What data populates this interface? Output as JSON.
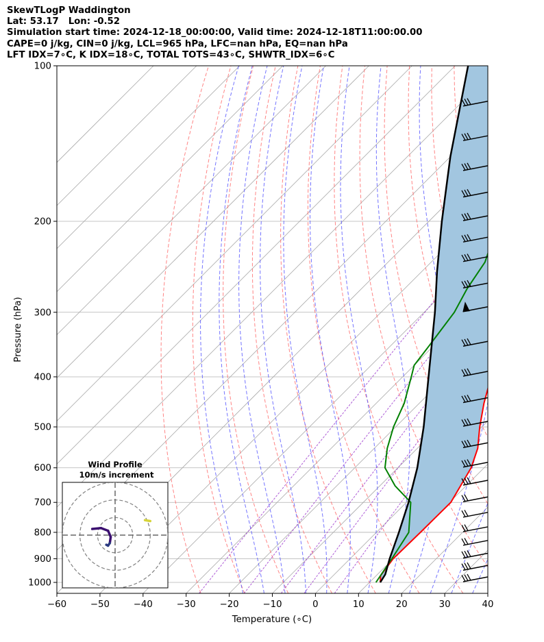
{
  "header": {
    "line1": "SkewTLogP Waddington",
    "line2": "Lat: 53.17   Lon: -0.52",
    "line3": "Simulation start time: 2024-12-18_00:00:00, Valid time: 2024-12-18T11:00:00.00",
    "line4": "CAPE=0 j/kg, CIN=0 j/kg, LCL=965 hPa, LFC=nan hPa, EQ=nan hPa",
    "line5": "LFT IDX=7∘C, K IDX=18∘C, TOTAL TOTS=43∘C, SHWTR_IDX=6∘C"
  },
  "chart_data": [
    {
      "type": "skew-t log-p",
      "xlabel": "Temperature (∘C)",
      "ylabel": "Pressure (hPa)",
      "xlim": [
        -60,
        40
      ],
      "ylim": [
        1050,
        100
      ],
      "x_ticks": [
        -60,
        -50,
        -40,
        -30,
        -20,
        -10,
        0,
        10,
        20,
        30,
        40
      ],
      "x_tick_labels": [
        "−60",
        "−50",
        "−40",
        "−30",
        "−20",
        "−10",
        "0",
        "10",
        "20",
        "30",
        "40"
      ],
      "y_ticks": [
        1000,
        900,
        800,
        700,
        600,
        500,
        400,
        300,
        200,
        100
      ],
      "y_tick_labels": [
        "1000",
        "900",
        "800",
        "700",
        "600",
        "500",
        "400",
        "300",
        "200",
        "100"
      ],
      "y_scale": "log",
      "grid": true,
      "colors": {
        "temperature": "#ff0000",
        "dewpoint": "#008000",
        "parcel": "#000000",
        "shading": "#a2c6e0",
        "dry_adiabat": "#ff6f6f",
        "moist_adiabat": "#5a5aff",
        "mixing_ratio": "#9932cc",
        "isotherm": "#a9a9a9"
      },
      "series": [
        {
          "role": "temperature",
          "points": [
            [
              1000,
              12.5
            ],
            [
              970,
              11.0
            ],
            [
              900,
              10.0
            ],
            [
              800,
              10.2
            ],
            [
              700,
              10.3
            ],
            [
              600,
              7.0
            ],
            [
              550,
              4.0
            ],
            [
              500,
              -0.5
            ],
            [
              450,
              -5.0
            ],
            [
              400,
              -9.5
            ],
            [
              350,
              -14.5
            ],
            [
              320,
              -17.5
            ],
            [
              300,
              -19.5
            ],
            [
              270,
              -22.5
            ],
            [
              250,
              -25.5
            ],
            [
              230,
              -28.0
            ],
            [
              210,
              -28.5
            ],
            [
              200,
              -28.5
            ],
            [
              180,
              -29.0
            ],
            [
              160,
              -31.0
            ],
            [
              140,
              -33.0
            ],
            [
              120,
              -35.0
            ],
            [
              100,
              -37.0
            ]
          ]
        },
        {
          "role": "dewpoint",
          "points": [
            [
              1000,
              11.5
            ],
            [
              900,
              9.7
            ],
            [
              800,
              7.5
            ],
            [
              700,
              1.0
            ],
            [
              650,
              -6.5
            ],
            [
              600,
              -13.0
            ],
            [
              550,
              -17.0
            ],
            [
              500,
              -20.5
            ],
            [
              450,
              -23.5
            ],
            [
              400,
              -28.0
            ],
            [
              380,
              -30.0
            ],
            [
              350,
              -31.0
            ],
            [
              300,
              -33.0
            ],
            [
              270,
              -35.5
            ],
            [
              240,
              -37.5
            ],
            [
              220,
              -40.5
            ],
            [
              200,
              -44.5
            ],
            [
              180,
              -49.0
            ],
            [
              160,
              -53.0
            ],
            [
              140,
              -58.0
            ],
            [
              120,
              -62.5
            ],
            [
              100,
              -65.0
            ]
          ]
        },
        {
          "role": "parcel",
          "points": [
            [
              1000,
              12.5
            ],
            [
              965,
              11.8
            ],
            [
              900,
              9.2
            ],
            [
              800,
              5.2
            ],
            [
              700,
              0.5
            ],
            [
              600,
              -5.5
            ],
            [
              500,
              -13.5
            ],
            [
              400,
              -24.0
            ],
            [
              300,
              -37.5
            ],
            [
              250,
              -46.5
            ],
            [
              200,
              -57.0
            ],
            [
              150,
              -70.0
            ],
            [
              100,
              -87.0
            ]
          ]
        }
      ],
      "wind_barbs": [
        {
          "p": 1000,
          "barbs": 3,
          "pennant": false
        },
        {
          "p": 950,
          "barbs": 3,
          "pennant": false
        },
        {
          "p": 900,
          "barbs": 3,
          "pennant": false
        },
        {
          "p": 850,
          "barbs": 2,
          "pennant": false
        },
        {
          "p": 800,
          "barbs": 2,
          "pennant": false
        },
        {
          "p": 750,
          "barbs": 2,
          "pennant": false
        },
        {
          "p": 700,
          "barbs": 2,
          "pennant": false
        },
        {
          "p": 650,
          "barbs": 3,
          "pennant": false
        },
        {
          "p": 600,
          "barbs": 3,
          "pennant": false
        },
        {
          "p": 550,
          "barbs": 3,
          "pennant": false
        },
        {
          "p": 500,
          "barbs": 3,
          "pennant": false
        },
        {
          "p": 450,
          "barbs": 3,
          "pennant": false
        },
        {
          "p": 400,
          "barbs": 3,
          "pennant": false
        },
        {
          "p": 350,
          "barbs": 3,
          "pennant": false
        },
        {
          "p": 300,
          "barbs": 0,
          "pennant": true
        },
        {
          "p": 270,
          "barbs": 3,
          "pennant": false
        },
        {
          "p": 240,
          "barbs": 3,
          "pennant": false
        },
        {
          "p": 220,
          "barbs": 3,
          "pennant": false
        },
        {
          "p": 200,
          "barbs": 3,
          "pennant": false
        },
        {
          "p": 180,
          "barbs": 3,
          "pennant": false
        },
        {
          "p": 160,
          "barbs": 3,
          "pennant": false
        },
        {
          "p": 140,
          "barbs": 3,
          "pennant": false
        },
        {
          "p": 120,
          "barbs": 3,
          "pennant": false
        }
      ]
    },
    {
      "type": "hodograph",
      "title": "Wind Profile",
      "subtitle": "10m/s increment",
      "ring_increment": 10,
      "rings": 3,
      "range": [
        -30,
        30
      ],
      "points": [
        [
          -13,
          3.5
        ],
        [
          -8,
          4
        ],
        [
          -4,
          2.5
        ],
        [
          -2.5,
          -1
        ],
        [
          -3,
          -4.5
        ],
        [
          -4,
          -6
        ],
        [
          -5,
          -5.5
        ]
      ],
      "extra_points": [
        [
          17,
          8.5
        ],
        [
          20,
          8
        ]
      ],
      "colors": {
        "path_start": "#3b0f70",
        "path_end": "#2b3a80",
        "extra": "#d6d43a",
        "rings": "#808080"
      }
    }
  ]
}
